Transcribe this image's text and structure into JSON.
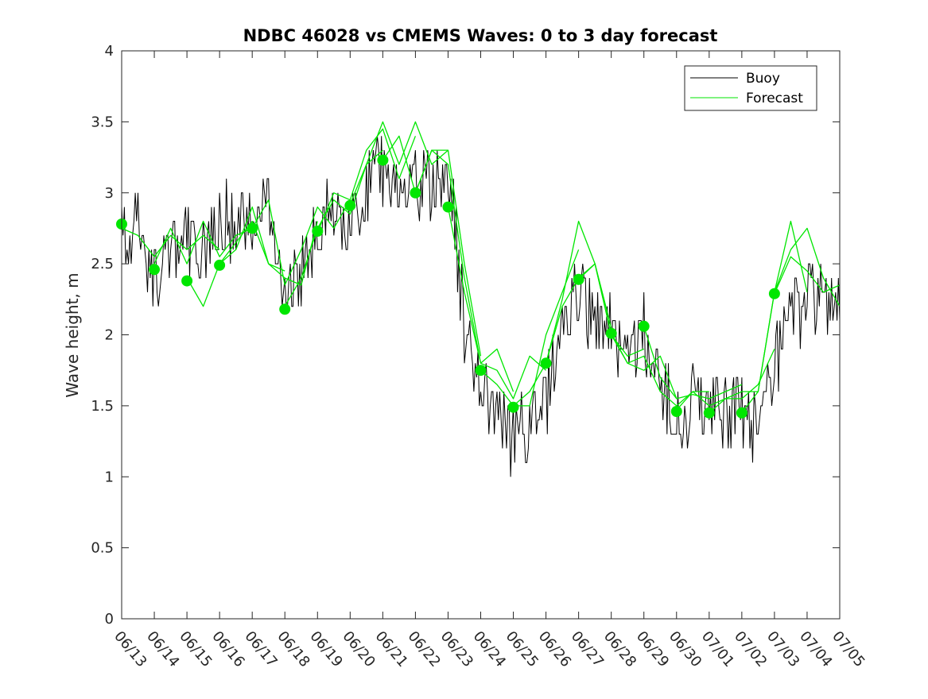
{
  "chart_data": {
    "type": "line",
    "title": "NDBC 46028 vs CMEMS Waves: 0 to 3 day forecast",
    "xlabel": "",
    "ylabel": "Wave height, m",
    "xticks": [
      "06/13",
      "06/14",
      "06/15",
      "06/16",
      "06/17",
      "06/18",
      "06/19",
      "06/20",
      "06/21",
      "06/22",
      "06/23",
      "06/24",
      "06/25",
      "06/26",
      "06/27",
      "06/28",
      "06/29",
      "06/30",
      "07/01",
      "07/02",
      "07/03",
      "07/04",
      "07/05"
    ],
    "yticks": [
      "0",
      "0.5",
      "1",
      "1.5",
      "2",
      "2.5",
      "3",
      "3.5",
      "4"
    ],
    "xlim": [
      "06/13",
      "07/05"
    ],
    "ylim": [
      0,
      4
    ],
    "grid": false,
    "legend": {
      "placement": "top-right",
      "entries": [
        "Buoy",
        "Forecast"
      ]
    },
    "colors": {
      "buoy": "#000000",
      "forecast": "#00e600"
    },
    "buoy_anchors": {
      "x": [
        "06/13 00:00",
        "06/13 12:00",
        "06/14 00:00",
        "06/14 12:00",
        "06/15 00:00",
        "06/15 12:00",
        "06/16 00:00",
        "06/16 12:00",
        "06/17 00:00",
        "06/17 12:00",
        "06/18 00:00",
        "06/18 12:00",
        "06/19 00:00",
        "06/19 12:00",
        "06/20 00:00",
        "06/20 12:00",
        "06/21 00:00",
        "06/21 12:00",
        "06/22 00:00",
        "06/22 12:00",
        "06/23 00:00",
        "06/23 12:00",
        "06/24 00:00",
        "06/24 12:00",
        "06/25 00:00",
        "06/25 12:00",
        "06/26 00:00",
        "06/26 12:00",
        "06/27 00:00",
        "06/27 12:00",
        "06/28 00:00",
        "06/28 12:00",
        "06/29 00:00",
        "06/29 12:00",
        "06/30 00:00",
        "06/30 12:00",
        "07/01 00:00",
        "07/01 12:00",
        "07/02 00:00",
        "07/02 12:00",
        "07/03 00:00",
        "07/03 12:00",
        "07/04 00:00",
        "07/04 12:00",
        "07/05 00:00"
      ],
      "y": [
        2.7,
        2.8,
        2.4,
        2.6,
        2.7,
        2.6,
        2.8,
        2.8,
        2.8,
        2.9,
        2.4,
        2.4,
        2.8,
        2.9,
        2.8,
        3.0,
        3.2,
        2.9,
        3.0,
        3.1,
        3.2,
        2.1,
        1.6,
        1.4,
        1.3,
        1.3,
        1.5,
        2.2,
        2.3,
        2.1,
        2.0,
        1.9,
        2.0,
        1.6,
        1.4,
        1.5,
        1.5,
        1.45,
        1.45,
        1.3,
        1.8,
        2.1,
        2.2,
        2.3,
        2.2
      ]
    },
    "forecast_runs": [
      {
        "x": [
          "06/13 00:00",
          "06/13 12:00",
          "06/14 00:00",
          "06/14 12:00",
          "06/15 00:00",
          "06/15 12:00",
          "06/16 00:00"
        ],
        "y": [
          2.75,
          2.7,
          2.55,
          2.7,
          2.6,
          2.7,
          2.6
        ]
      },
      {
        "x": [
          "06/14 00:00",
          "06/14 12:00",
          "06/15 00:00",
          "06/15 12:00",
          "06/16 00:00",
          "06/16 12:00",
          "06/17 00:00"
        ],
        "y": [
          2.5,
          2.75,
          2.5,
          2.8,
          2.55,
          2.7,
          2.75
        ]
      },
      {
        "x": [
          "06/15 00:00",
          "06/15 12:00",
          "06/16 00:00",
          "06/16 12:00",
          "06/17 00:00",
          "06/17 12:00",
          "06/18 00:00"
        ],
        "y": [
          2.4,
          2.2,
          2.5,
          2.65,
          2.8,
          2.5,
          2.45
        ]
      },
      {
        "x": [
          "06/16 00:00",
          "06/16 12:00",
          "06/17 00:00",
          "06/17 12:00",
          "06/18 00:00",
          "06/18 12:00",
          "06/19 00:00"
        ],
        "y": [
          2.5,
          2.6,
          2.9,
          2.5,
          2.4,
          2.35,
          2.8
        ]
      },
      {
        "x": [
          "06/17 00:00",
          "06/17 12:00",
          "06/18 00:00",
          "06/18 12:00",
          "06/19 00:00",
          "06/19 12:00",
          "06/20 00:00"
        ],
        "y": [
          2.75,
          2.95,
          2.35,
          2.6,
          2.9,
          2.75,
          2.95
        ]
      },
      {
        "x": [
          "06/18 00:00",
          "06/18 12:00",
          "06/19 00:00",
          "06/19 12:00",
          "06/20 00:00",
          "06/20 12:00",
          "06/21 00:00"
        ],
        "y": [
          2.2,
          2.4,
          2.75,
          2.95,
          2.85,
          3.2,
          3.3
        ]
      },
      {
        "x": [
          "06/19 00:00",
          "06/19 12:00",
          "06/20 00:00",
          "06/20 12:00",
          "06/21 00:00",
          "06/21 12:00",
          "06/22 00:00"
        ],
        "y": [
          2.72,
          3.0,
          2.95,
          3.3,
          3.45,
          3.1,
          3.4
        ]
      },
      {
        "x": [
          "06/20 00:00",
          "06/20 12:00",
          "06/21 00:00",
          "06/21 12:00",
          "06/22 00:00",
          "06/22 12:00",
          "06/23 00:00"
        ],
        "y": [
          2.92,
          3.2,
          3.5,
          3.2,
          3.5,
          3.2,
          3.3
        ]
      },
      {
        "x": [
          "06/21 00:00",
          "06/21 12:00",
          "06/22 00:00",
          "06/22 12:00",
          "06/23 00:00",
          "06/23 12:00",
          "06/24 00:00"
        ],
        "y": [
          3.23,
          3.4,
          3.0,
          3.3,
          3.3,
          2.5,
          1.85
        ]
      },
      {
        "x": [
          "06/22 00:00",
          "06/22 12:00",
          "06/23 00:00",
          "06/23 12:00",
          "06/24 00:00",
          "06/24 12:00",
          "06/25 00:00"
        ],
        "y": [
          3.0,
          3.3,
          3.2,
          2.4,
          1.8,
          1.9,
          1.6
        ]
      },
      {
        "x": [
          "06/23 00:00",
          "06/23 12:00",
          "06/24 00:00",
          "06/24 12:00",
          "06/25 00:00",
          "06/25 12:00",
          "06/26 00:00"
        ],
        "y": [
          2.9,
          2.3,
          1.8,
          1.75,
          1.55,
          1.85,
          1.75
        ]
      },
      {
        "x": [
          "06/24 00:00",
          "06/24 12:00",
          "06/25 00:00",
          "06/25 12:00",
          "06/26 00:00",
          "06/26 12:00",
          "06/27 00:00"
        ],
        "y": [
          1.75,
          1.65,
          1.5,
          1.5,
          2.0,
          2.3,
          2.6
        ]
      },
      {
        "x": [
          "06/25 00:00",
          "06/25 12:00",
          "06/26 00:00",
          "06/26 12:00",
          "06/27 00:00",
          "06/27 12:00",
          "06/28 00:00"
        ],
        "y": [
          1.5,
          1.6,
          1.8,
          2.25,
          2.8,
          2.5,
          2.05
        ]
      },
      {
        "x": [
          "06/26 00:00",
          "06/26 12:00",
          "06/27 00:00",
          "06/27 12:00",
          "06/28 00:00",
          "06/28 12:00",
          "06/29 00:00"
        ],
        "y": [
          1.8,
          2.2,
          2.4,
          2.5,
          2.0,
          1.85,
          1.9
        ]
      },
      {
        "x": [
          "06/27 00:00",
          "06/27 12:00",
          "06/28 00:00",
          "06/28 12:00",
          "06/29 00:00",
          "06/29 12:00",
          "06/30 00:00"
        ],
        "y": [
          2.39,
          2.5,
          2.0,
          1.8,
          1.75,
          1.85,
          1.55
        ]
      },
      {
        "x": [
          "06/28 00:00",
          "06/28 12:00",
          "06/29 00:00",
          "06/29 12:00",
          "06/30 00:00",
          "06/30 12:00",
          "07/01 00:00"
        ],
        "y": [
          2.01,
          1.8,
          1.85,
          1.6,
          1.5,
          1.6,
          1.6
        ]
      },
      {
        "x": [
          "06/29 00:00",
          "06/29 12:00",
          "06/30 00:00",
          "06/30 12:00",
          "07/01 00:00",
          "07/01 12:00",
          "07/02 00:00"
        ],
        "y": [
          2.06,
          1.7,
          1.55,
          1.58,
          1.55,
          1.6,
          1.65
        ]
      },
      {
        "x": [
          "06/30 00:00",
          "06/30 12:00",
          "07/01 00:00",
          "07/01 12:00",
          "07/02 00:00",
          "07/02 12:00",
          "07/03 00:00"
        ],
        "y": [
          1.47,
          1.6,
          1.5,
          1.55,
          1.55,
          1.65,
          1.9
        ]
      },
      {
        "x": [
          "07/01 00:00",
          "07/01 12:00",
          "07/02 00:00",
          "07/02 12:00",
          "07/03 00:00",
          "07/03 12:00",
          "07/04 00:00"
        ],
        "y": [
          1.45,
          1.55,
          1.6,
          1.6,
          2.3,
          2.8,
          2.3
        ]
      },
      {
        "x": [
          "07/02 00:00",
          "07/02 12:00",
          "07/03 00:00",
          "07/03 12:00",
          "07/04 00:00",
          "07/04 12:00",
          "07/05 00:00"
        ],
        "y": [
          1.45,
          1.6,
          2.3,
          2.6,
          2.75,
          2.4,
          2.2
        ]
      },
      {
        "x": [
          "07/03 00:00",
          "07/03 12:00",
          "07/04 00:00",
          "07/04 12:00",
          "07/05 00:00"
        ],
        "y": [
          2.29,
          2.55,
          2.45,
          2.3,
          2.35
        ]
      }
    ],
    "forecast_initial_points": {
      "x": [
        "06/13",
        "06/14",
        "06/15",
        "06/16",
        "06/17",
        "06/18",
        "06/19",
        "06/20",
        "06/21",
        "06/22",
        "06/23",
        "06/24",
        "06/25",
        "06/26",
        "06/27",
        "06/28",
        "06/29",
        "06/30",
        "07/01",
        "07/02",
        "07/03"
      ],
      "y": [
        2.78,
        2.46,
        2.38,
        2.49,
        2.75,
        2.18,
        2.73,
        2.91,
        3.23,
        3.0,
        2.9,
        1.75,
        1.49,
        1.8,
        2.39,
        2.01,
        2.06,
        1.46,
        1.45,
        1.45,
        2.29
      ]
    }
  }
}
